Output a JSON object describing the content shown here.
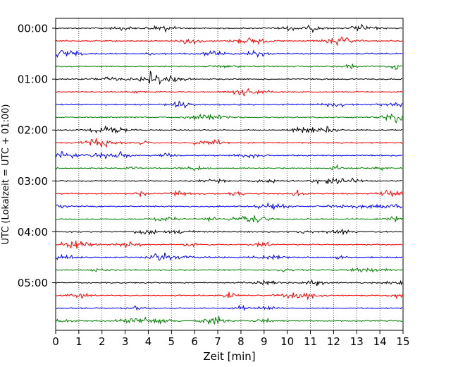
{
  "chart_data": {
    "type": "line",
    "title": "",
    "xlabel": "Zeit  [min]",
    "ylabel": "UTC (Lokalzeit = UTC + 01:00)",
    "xlim": [
      0,
      15
    ],
    "x_ticks": [
      0,
      1,
      2,
      3,
      4,
      5,
      6,
      7,
      8,
      9,
      10,
      11,
      12,
      13,
      14,
      15
    ],
    "x_tick_labels": [
      "0",
      "1",
      "2",
      "3",
      "4",
      "5",
      "6",
      "7",
      "8",
      "9",
      "10",
      "11",
      "12",
      "13",
      "14",
      "15"
    ],
    "y_tick_labels": [
      "00:00",
      "01:00",
      "02:00",
      "03:00",
      "04:00",
      "05:00"
    ],
    "grid": {
      "vertical": true,
      "style": "dotted"
    },
    "trace_colors": [
      "#000000",
      "#ff0000",
      "#0000ff",
      "#008000"
    ],
    "traces_per_hour": 4,
    "minutes_per_trace": 15,
    "trace_start_times": [
      "00:00",
      "00:15",
      "00:30",
      "00:45",
      "01:00",
      "01:15",
      "01:30",
      "01:45",
      "02:00",
      "02:15",
      "02:30",
      "02:45",
      "03:00",
      "03:15",
      "03:30",
      "03:45",
      "04:00",
      "04:15",
      "04:30",
      "04:45",
      "05:00",
      "05:15",
      "05:30",
      "05:45"
    ]
  }
}
